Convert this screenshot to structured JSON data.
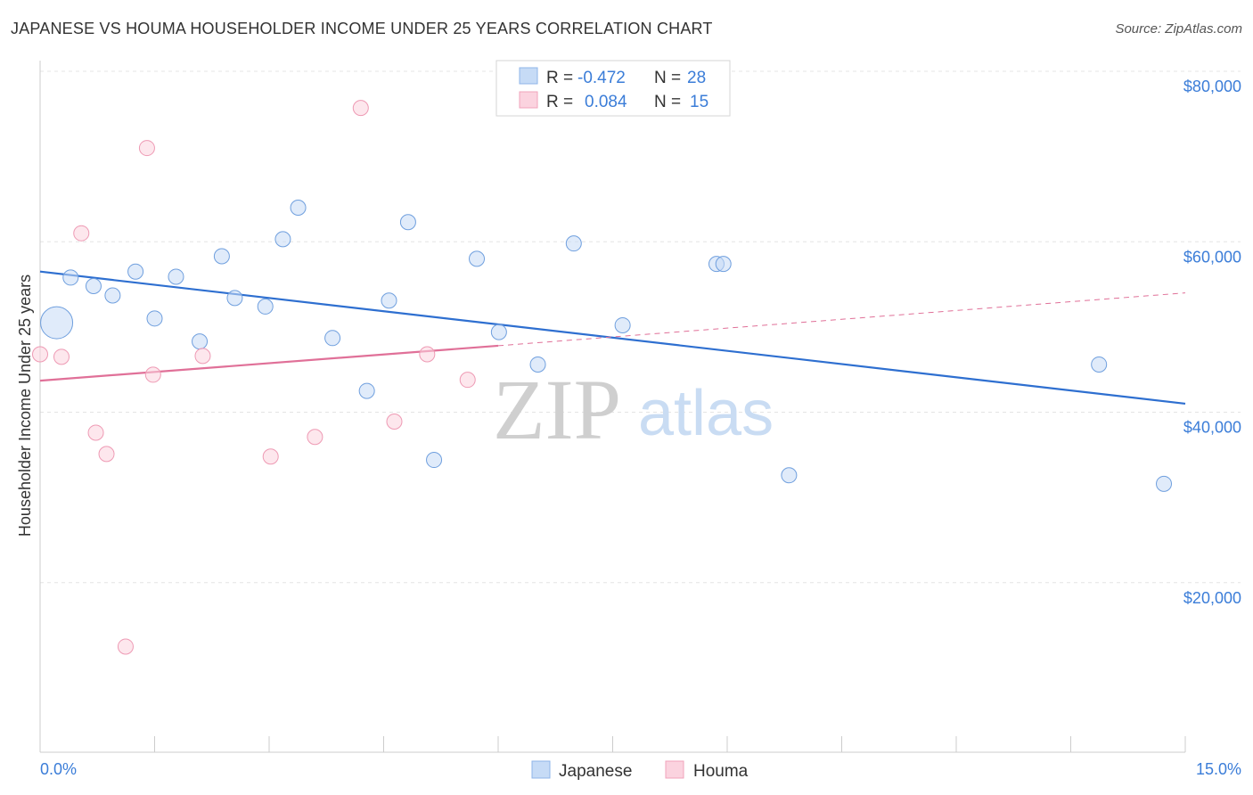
{
  "title": "JAPANESE VS HOUMA HOUSEHOLDER INCOME UNDER 25 YEARS CORRELATION CHART",
  "source": "Source: ZipAtlas.com",
  "watermark": {
    "zip": "ZIP",
    "atlas": "atlas"
  },
  "colors": {
    "japanese": "#a8c8f0",
    "japanese_line": "#2e6fd0",
    "houma": "#f6b8c8",
    "houma_line": "#e07098",
    "axis_text": "#3b7dd8"
  },
  "stats": {
    "r_label": "R =",
    "n_label": "N =",
    "japanese": {
      "r": "-0.472",
      "n": "28"
    },
    "houma": {
      "r": "0.084",
      "n": "15"
    }
  },
  "chart_data": {
    "type": "scatter",
    "title": "JAPANESE VS HOUMA HOUSEHOLDER INCOME UNDER 25 YEARS CORRELATION CHART",
    "xlabel": "",
    "ylabel": "Householder Income Under 25 years",
    "xlim": [
      0,
      15
    ],
    "ylim": [
      0,
      83000
    ],
    "x_tick_labels": [
      "0.0%",
      "15.0%"
    ],
    "y_ticks": [
      20000,
      40000,
      60000,
      80000
    ],
    "y_tick_labels": [
      "$20,000",
      "$40,000",
      "$60,000",
      "$80,000"
    ],
    "grid": true,
    "legend_position": "bottom-center",
    "series": [
      {
        "name": "Japanese",
        "points": [
          {
            "x": 0.1,
            "y": 50500
          },
          {
            "x": 0.4,
            "y": 55800
          },
          {
            "x": 0.7,
            "y": 54800
          },
          {
            "x": 0.95,
            "y": 53700
          },
          {
            "x": 1.25,
            "y": 56500
          },
          {
            "x": 1.5,
            "y": 51000
          },
          {
            "x": 1.78,
            "y": 55900
          },
          {
            "x": 2.09,
            "y": 48300
          },
          {
            "x": 2.38,
            "y": 58300
          },
          {
            "x": 2.55,
            "y": 53400
          },
          {
            "x": 2.95,
            "y": 52400
          },
          {
            "x": 3.18,
            "y": 60300
          },
          {
            "x": 3.38,
            "y": 64000
          },
          {
            "x": 3.83,
            "y": 48700
          },
          {
            "x": 4.28,
            "y": 42500
          },
          {
            "x": 4.57,
            "y": 53100
          },
          {
            "x": 4.82,
            "y": 62300
          },
          {
            "x": 5.16,
            "y": 34400
          },
          {
            "x": 5.72,
            "y": 58000
          },
          {
            "x": 6.01,
            "y": 49400
          },
          {
            "x": 6.52,
            "y": 45600
          },
          {
            "x": 6.99,
            "y": 59800
          },
          {
            "x": 7.63,
            "y": 50200
          },
          {
            "x": 8.86,
            "y": 57400
          },
          {
            "x": 8.95,
            "y": 57400
          },
          {
            "x": 9.81,
            "y": 32600
          },
          {
            "x": 13.87,
            "y": 45600
          },
          {
            "x": 14.72,
            "y": 31600
          }
        ],
        "trend": {
          "x": [
            0,
            15
          ],
          "y": [
            56500,
            41000
          ]
        }
      },
      {
        "name": "Houma",
        "points": [
          {
            "x": 0.0,
            "y": 46800
          },
          {
            "x": 0.28,
            "y": 46500
          },
          {
            "x": 0.54,
            "y": 61000
          },
          {
            "x": 0.73,
            "y": 37600
          },
          {
            "x": 0.87,
            "y": 35100
          },
          {
            "x": 1.12,
            "y": 12500
          },
          {
            "x": 1.4,
            "y": 71000
          },
          {
            "x": 1.48,
            "y": 44400
          },
          {
            "x": 2.13,
            "y": 46600
          },
          {
            "x": 3.02,
            "y": 34800
          },
          {
            "x": 3.6,
            "y": 37100
          },
          {
            "x": 4.2,
            "y": 75700
          },
          {
            "x": 4.64,
            "y": 38900
          },
          {
            "x": 5.07,
            "y": 46800
          },
          {
            "x": 5.6,
            "y": 43800
          }
        ],
        "trend": {
          "x": [
            0,
            6
          ],
          "y": [
            43700,
            47800
          ]
        },
        "trend_extension": {
          "x": [
            6,
            15
          ],
          "y": [
            47800,
            54000
          ]
        }
      }
    ]
  }
}
